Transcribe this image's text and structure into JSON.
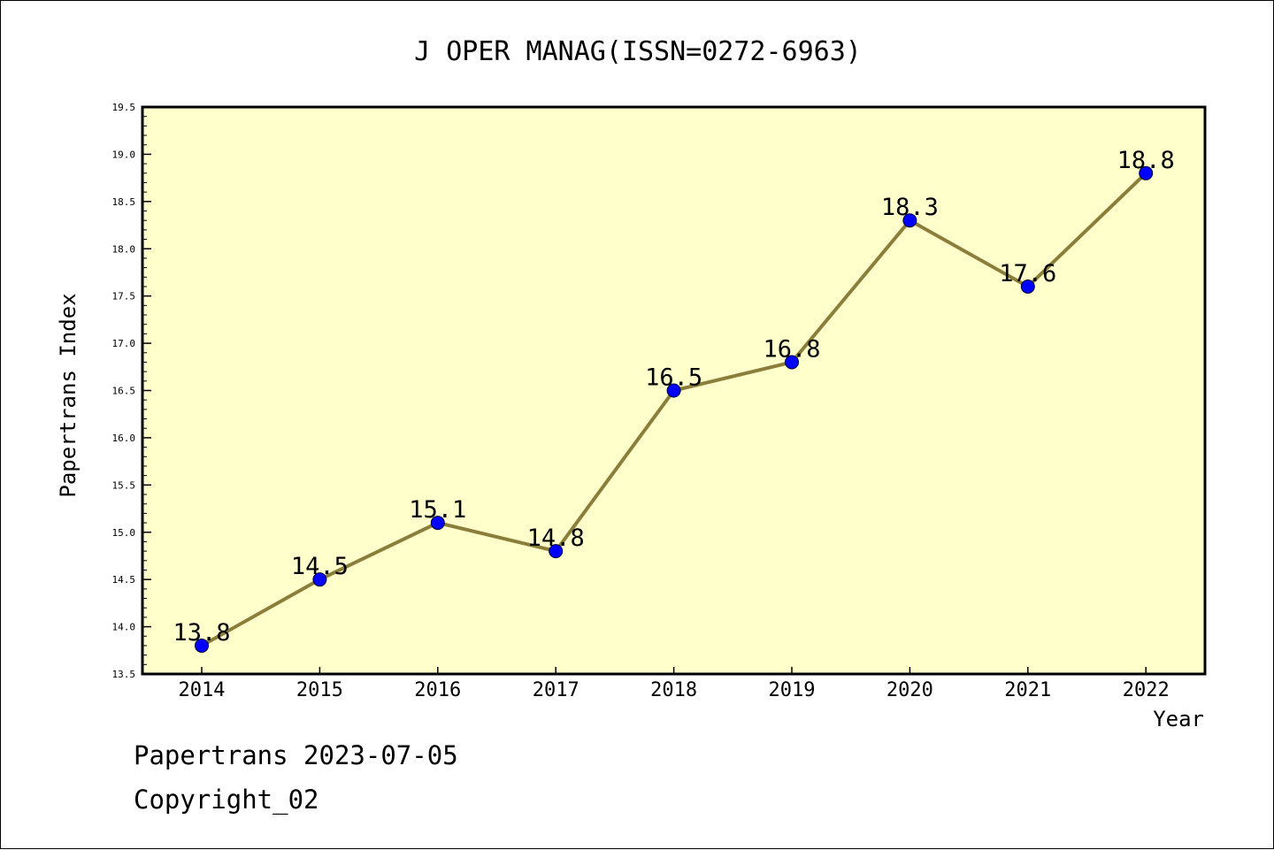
{
  "chart_data": {
    "type": "line",
    "title": "J OPER MANAG(ISSN=0272-6963)",
    "xlabel": "Year",
    "ylabel": "Papertrans Index",
    "categories": [
      "2014",
      "2015",
      "2016",
      "2017",
      "2018",
      "2019",
      "2020",
      "2021",
      "2022"
    ],
    "series": [
      {
        "values": [
          13.8,
          14.5,
          15.1,
          14.8,
          16.5,
          16.8,
          18.3,
          17.6,
          18.8
        ],
        "labels": [
          "13.8",
          "14.5",
          "15.1",
          "14.8",
          "16.5",
          "16.8",
          "18.3",
          "17.6",
          "18.8"
        ]
      }
    ],
    "ylim": [
      13.5,
      19.5
    ],
    "ytick_labels": [
      "13.5",
      "14.0",
      "14.5",
      "15.0",
      "15.5",
      "16.0",
      "16.5",
      "17.0",
      "17.5",
      "18.0",
      "18.5",
      "19.0",
      "19.5"
    ],
    "grid": false,
    "colors": {
      "plot_background": "#ffffcc",
      "line": "#8b7d3a",
      "marker": "#0000ff"
    }
  },
  "footer": {
    "date_line": "Papertrans 2023-07-05",
    "copyright_line": "Copyright_02"
  }
}
